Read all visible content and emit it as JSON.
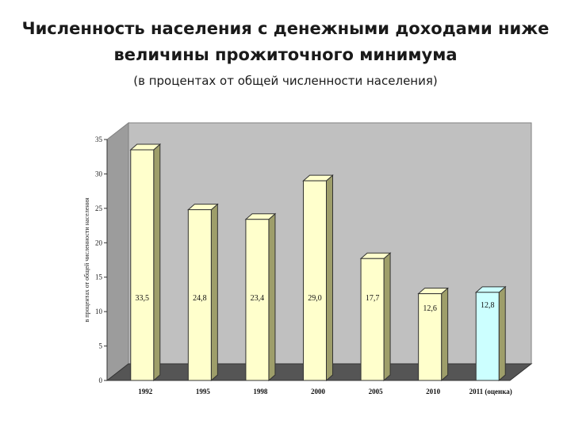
{
  "header": {
    "title_line1": "Численность населения с денежными доходами ниже",
    "title_line2": "величины прожиточного минимума",
    "subtitle": "(в процентах от общей численности населения)"
  },
  "chart_data": {
    "type": "bar",
    "title": "",
    "xlabel": "",
    "ylabel": "в процентах от общей численности населения",
    "ylim": [
      0,
      35
    ],
    "yticks": [
      0,
      5,
      10,
      15,
      20,
      25,
      30,
      35
    ],
    "categories": [
      "1992",
      "1995",
      "1998",
      "2000",
      "2005",
      "2010",
      "2011 (оценка)"
    ],
    "values": [
      33.5,
      24.8,
      23.4,
      29.0,
      17.7,
      12.6,
      12.8
    ],
    "data_labels": [
      "33,5",
      "24,8",
      "23,4",
      "29,0",
      "17,7",
      "12,6",
      "12,8"
    ],
    "bar_colors": [
      "#ffffcc",
      "#ffffcc",
      "#ffffcc",
      "#ffffcc",
      "#ffffcc",
      "#ffffcc",
      "#ccffff"
    ],
    "grid": false,
    "legend": "none",
    "style": "3d"
  }
}
